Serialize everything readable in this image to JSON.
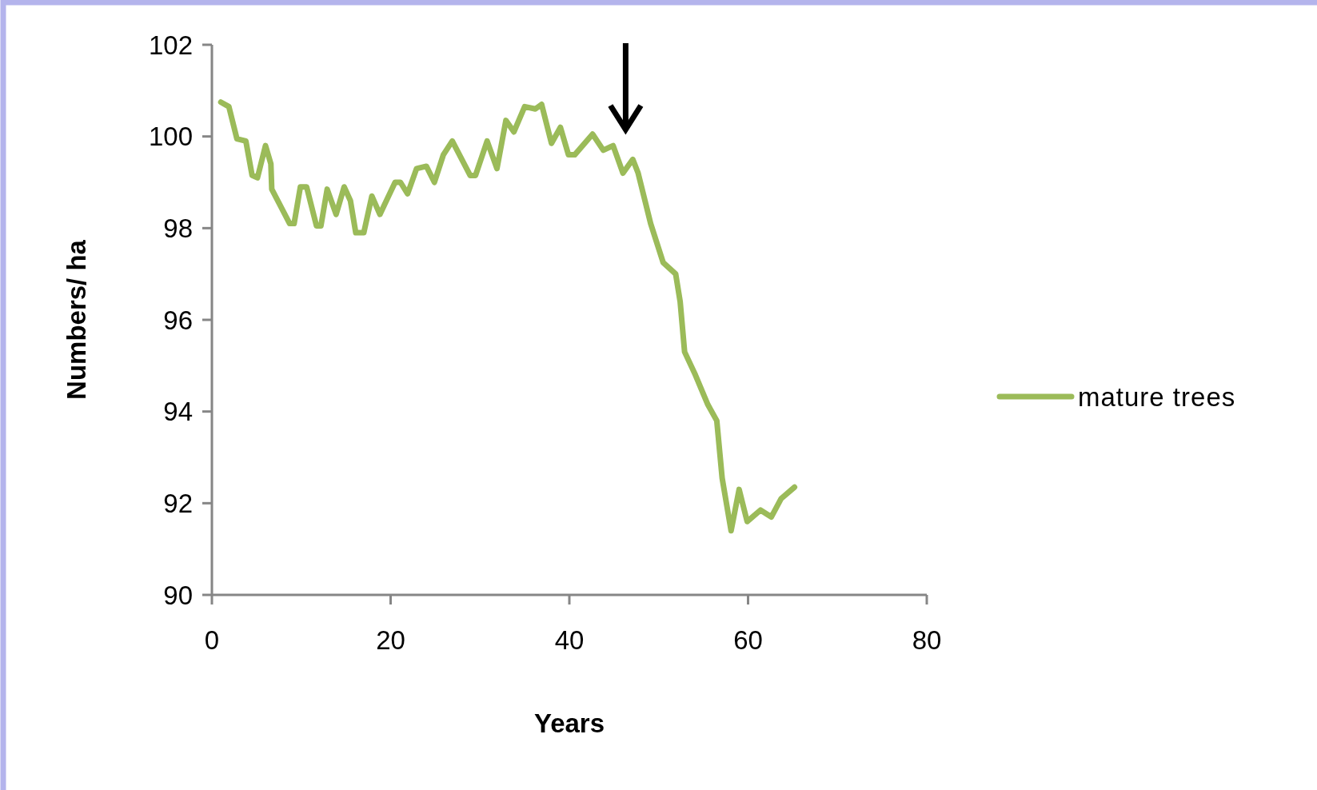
{
  "chart_data": {
    "type": "line",
    "xlabel": "Years",
    "ylabel": "Numbers/ ha",
    "xlim": [
      0,
      80
    ],
    "ylim": [
      90,
      102
    ],
    "xticks": [
      0,
      20,
      40,
      60,
      80
    ],
    "yticks": [
      90,
      92,
      94,
      96,
      98,
      100,
      102
    ],
    "grid": false,
    "legend": "right",
    "marker": "none",
    "line_style": "solid",
    "series": [
      {
        "name": "mature trees",
        "color": "#9bbb59",
        "x": [
          1,
          1.9,
          2.8,
          3.8,
          4.5,
          5.1,
          6.0,
          6.6,
          6.7,
          8.7,
          9.2,
          9.9,
          10.6,
          11.7,
          12.2,
          12.9,
          13.9,
          14.8,
          15.5,
          16.1,
          17.0,
          17.9,
          18.8,
          20.5,
          21.1,
          21.9,
          22.9,
          24.0,
          24.9,
          25.9,
          26.9,
          28.9,
          29.5,
          30.8,
          31.9,
          32.9,
          33.8,
          35.0,
          36.2,
          36.9,
          38.0,
          39.0,
          39.9,
          40.6,
          42.6,
          43.8,
          44.9,
          46.0,
          47.1,
          47.7,
          49.1,
          50.5,
          51.9,
          52.4,
          52.9,
          54.1,
          55.5,
          56.5,
          57.1,
          58.1,
          59.0,
          59.9,
          61.4,
          62.6,
          63.7,
          65.2
        ],
        "values": [
          100.75,
          100.65,
          99.95,
          99.9,
          99.15,
          99.1,
          99.8,
          99.4,
          98.85,
          98.1,
          98.1,
          98.9,
          98.9,
          98.05,
          98.05,
          98.85,
          98.3,
          98.9,
          98.6,
          97.9,
          97.9,
          98.7,
          98.3,
          99.0,
          99.0,
          98.75,
          99.3,
          99.35,
          99.0,
          99.6,
          99.9,
          99.15,
          99.15,
          99.9,
          99.3,
          100.35,
          100.1,
          100.65,
          100.6,
          100.7,
          99.85,
          100.2,
          99.6,
          99.6,
          100.05,
          99.7,
          99.8,
          99.2,
          99.5,
          99.2,
          98.1,
          97.25,
          97.0,
          96.4,
          95.3,
          94.8,
          94.15,
          93.8,
          92.55,
          91.4,
          92.3,
          91.6,
          91.85,
          91.7,
          92.1,
          92.35
        ]
      }
    ]
  }
}
